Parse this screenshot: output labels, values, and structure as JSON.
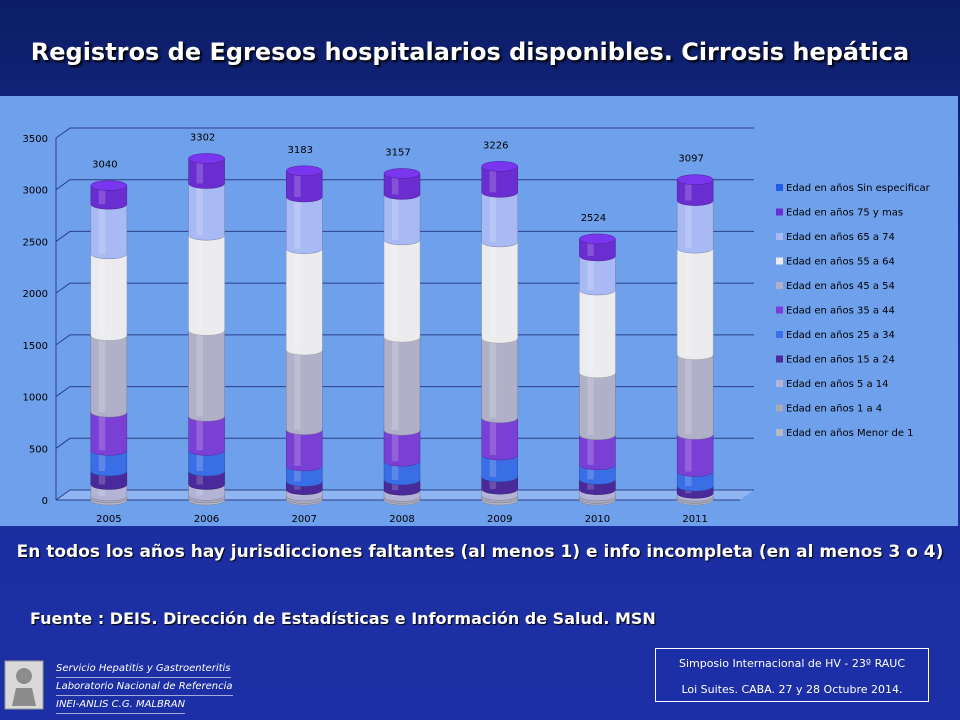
{
  "title": "Registros de Egresos hospitalarios disponibles.  Cirrosis  hepática",
  "note": "En todos los años hay jurisdicciones faltantes (al menos 1) e info incompleta (en al menos 3 o 4)",
  "source": "Fuente : DEIS. Dirección de Estadísticas  e Información de Salud. MSN",
  "institution": {
    "line1": "Servicio Hepatitis y Gastroenteritis",
    "line2": "Laboratorio Nacional de Referencia",
    "line3": "INEI-ANLIS C.G. MALBRAN"
  },
  "event": {
    "line1": "Simposio Internacional de HV - 23º RAUC",
    "line2": "Loi Suites. CABA.  27 y 28  Octubre 2014."
  },
  "chart_data": {
    "type": "bar",
    "stacked": true,
    "categories": [
      "2005",
      "2006",
      "2007",
      "2008",
      "2009",
      "2010",
      "2011"
    ],
    "ylim": [
      0,
      3500
    ],
    "yticks": [
      0,
      500,
      1000,
      1500,
      2000,
      2500,
      3000,
      3500
    ],
    "totals": [
      3040,
      3302,
      3183,
      3157,
      3226,
      2524,
      3097
    ],
    "legend_position": "right",
    "series": [
      {
        "name": "Edad en años Menor de 1",
        "color": "#b7b7c9",
        "values": [
          20,
          20,
          15,
          15,
          20,
          15,
          15
        ]
      },
      {
        "name": "Edad en años 1 a 4",
        "color": "#a9a9bd",
        "values": [
          20,
          25,
          25,
          20,
          25,
          25,
          20
        ]
      },
      {
        "name": "Edad en años 5 a 14",
        "color": "#b3b3d6",
        "values": [
          110,
          105,
          60,
          60,
          60,
          60,
          30
        ]
      },
      {
        "name": "Edad en años 15 a 24",
        "color": "#4a2a9a",
        "values": [
          130,
          130,
          80,
          100,
          120,
          100,
          70
        ]
      },
      {
        "name": "Edad en años 25 a 34",
        "color": "#3a6ee6",
        "values": [
          200,
          200,
          150,
          180,
          210,
          140,
          140
        ]
      },
      {
        "name": "Edad en años 35 a 44",
        "color": "#7a3fd4",
        "values": [
          370,
          330,
          350,
          300,
          360,
          290,
          360
        ]
      },
      {
        "name": "Edad en años 45 a 54",
        "color": "#b0b0c8",
        "values": [
          740,
          830,
          770,
          900,
          770,
          600,
          770
        ]
      },
      {
        "name": "Edad en años 55 a 64",
        "color": "#ececee",
        "values": [
          790,
          920,
          980,
          940,
          930,
          800,
          1030
        ]
      },
      {
        "name": "Edad en años 65 a 74",
        "color": "#a9b9f3",
        "values": [
          480,
          500,
          500,
          440,
          480,
          330,
          460
        ]
      },
      {
        "name": "Edad en años 75 y mas",
        "color": "#6a2ed0",
        "values": [
          180,
          242,
          253,
          202,
          251,
          164,
          202
        ]
      },
      {
        "name": "Edad en años Sin especificar",
        "color": "#1f5ee8",
        "values": [
          0,
          0,
          0,
          0,
          0,
          0,
          0
        ]
      }
    ]
  }
}
